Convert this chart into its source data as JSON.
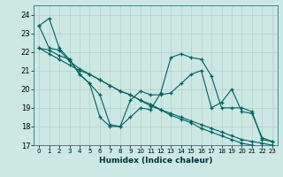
{
  "xlabel": "Humidex (Indice chaleur)",
  "background_color": "#cbe8e3",
  "grid_color": "#bbcccc",
  "line_color": "#006060",
  "xlim": [
    -0.5,
    23.5
  ],
  "ylim": [
    17,
    24.5
  ],
  "yticks": [
    17,
    18,
    19,
    20,
    21,
    22,
    23,
    24
  ],
  "xticks": [
    0,
    1,
    2,
    3,
    4,
    5,
    6,
    7,
    8,
    9,
    10,
    11,
    12,
    13,
    14,
    15,
    16,
    17,
    18,
    19,
    20,
    21,
    22,
    23
  ],
  "series": [
    [
      23.4,
      23.8,
      22.2,
      21.6,
      20.8,
      20.3,
      18.5,
      18.0,
      18.0,
      18.5,
      19.0,
      18.9,
      19.8,
      21.7,
      21.9,
      21.7,
      21.6,
      20.7,
      19.0,
      19.0,
      19.0,
      18.8,
      17.3,
      17.2
    ],
    [
      22.2,
      22.1,
      21.8,
      21.6,
      20.8,
      20.3,
      19.7,
      18.1,
      18.0,
      19.4,
      19.9,
      19.7,
      19.7,
      19.8,
      20.3,
      20.8,
      21.0,
      19.0,
      19.3,
      20.0,
      18.8,
      18.7,
      17.4,
      17.2
    ],
    [
      23.4,
      22.2,
      22.1,
      21.5,
      21.1,
      20.8,
      20.5,
      20.2,
      19.9,
      19.7,
      19.4,
      19.2,
      18.9,
      18.7,
      18.5,
      18.3,
      18.1,
      17.9,
      17.7,
      17.5,
      17.3,
      17.2,
      17.1,
      17.0
    ],
    [
      22.2,
      21.9,
      21.6,
      21.3,
      21.0,
      20.8,
      20.5,
      20.2,
      19.9,
      19.7,
      19.4,
      19.1,
      18.9,
      18.6,
      18.4,
      18.2,
      17.9,
      17.7,
      17.5,
      17.3,
      17.1,
      17.0,
      16.9,
      16.8
    ]
  ]
}
